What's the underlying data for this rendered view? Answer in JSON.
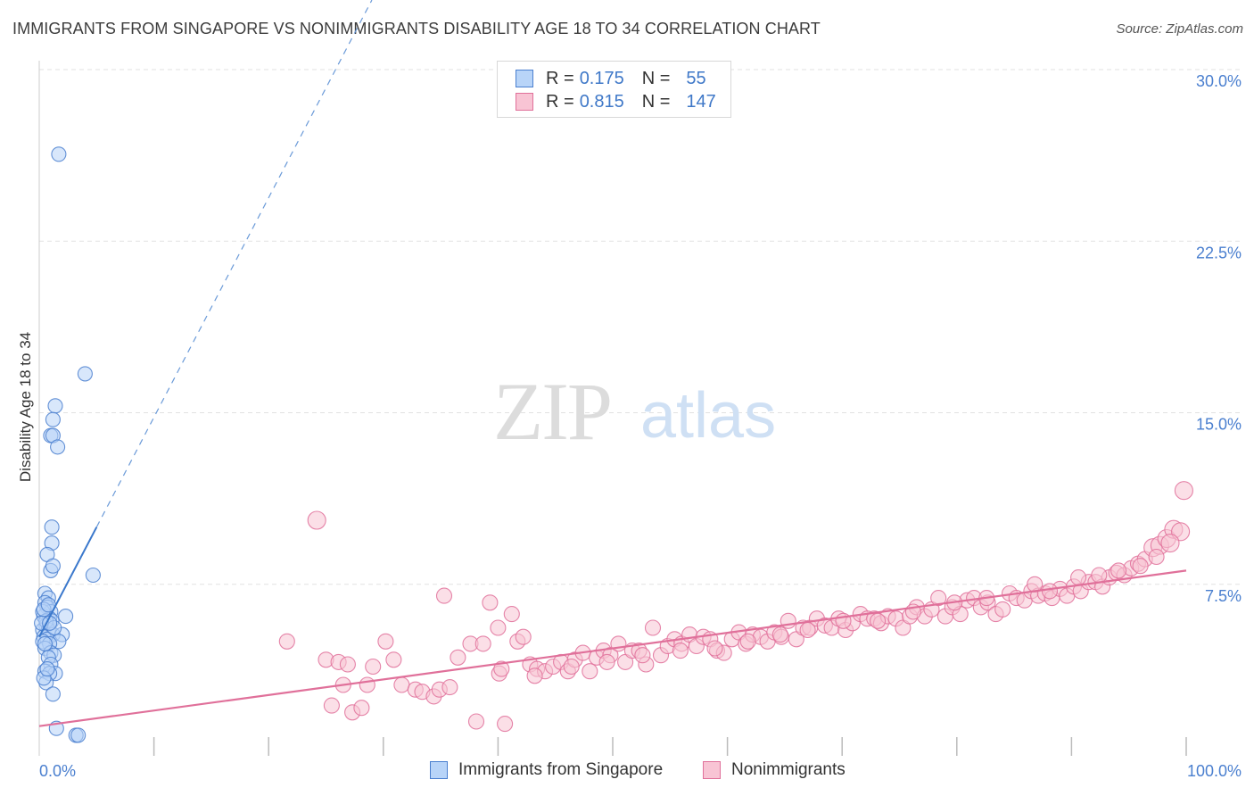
{
  "title": "IMMIGRANTS FROM SINGAPORE VS NONIMMIGRANTS DISABILITY AGE 18 TO 34 CORRELATION CHART",
  "source": "Source: ZipAtlas.com",
  "watermark": {
    "zip": "ZIP",
    "atlas": "atlas"
  },
  "legend": {
    "rows": [
      {
        "r_label": "R =",
        "r_value": "0.175",
        "n_label": "N =",
        "n_value": "55",
        "color": "#4a7fcf",
        "fill": "#b8d4f8"
      },
      {
        "r_label": "R =",
        "r_value": "0.815",
        "n_label": "N =",
        "n_value": "147",
        "color": "#e0709a",
        "fill": "#f8c4d4"
      }
    ]
  },
  "bottom_legend": [
    {
      "label": "Immigrants from Singapore",
      "color": "#4a7fcf",
      "fill": "#b8d4f8"
    },
    {
      "label": "Nonimmigrants",
      "color": "#e0709a",
      "fill": "#f8c4d4"
    }
  ],
  "chart_data": {
    "type": "scatter",
    "ylabel": "Disability Age 18 to 34",
    "xlim": [
      0,
      100
    ],
    "ylim": [
      0,
      30
    ],
    "x_tick_labels": [
      "0.0%",
      "100.0%"
    ],
    "y_ticks": [
      7.5,
      15.0,
      22.5,
      30.0
    ],
    "y_tick_labels": [
      "7.5%",
      "15.0%",
      "22.5%",
      "30.0%"
    ],
    "grid": true,
    "series": [
      {
        "name": "Immigrants from Singapore",
        "color": "#4a7fcf",
        "fill": "#b8d4f8",
        "trend": {
          "x0": 0,
          "y0": 5.2,
          "x1": 5,
          "y1": 10.0,
          "dashed_to_x": 29
        },
        "points": [
          [
            1.7,
            26.3
          ],
          [
            4,
            16.7
          ],
          [
            1.4,
            15.3
          ],
          [
            1.2,
            14.7
          ],
          [
            1.0,
            14.0
          ],
          [
            1.2,
            14.0
          ],
          [
            1.6,
            13.5
          ],
          [
            1.1,
            10.0
          ],
          [
            1.1,
            9.3
          ],
          [
            0.7,
            8.8
          ],
          [
            1.0,
            8.1
          ],
          [
            1.2,
            8.3
          ],
          [
            4.7,
            7.9
          ],
          [
            0.5,
            7.1
          ],
          [
            0.8,
            6.9
          ],
          [
            0.5,
            6.7
          ],
          [
            0.7,
            6.5
          ],
          [
            1.0,
            6.3
          ],
          [
            0.4,
            6.1
          ],
          [
            0.9,
            6.0
          ],
          [
            2.3,
            6.1
          ],
          [
            1.1,
            5.9
          ],
          [
            0.6,
            5.7
          ],
          [
            0.3,
            5.5
          ],
          [
            0.8,
            5.5
          ],
          [
            1.2,
            5.3
          ],
          [
            2.0,
            5.3
          ],
          [
            0.4,
            5.2
          ],
          [
            0.7,
            5.1
          ],
          [
            0.3,
            5.0
          ],
          [
            1.7,
            5.0
          ],
          [
            0.9,
            4.9
          ],
          [
            0.5,
            4.7
          ],
          [
            1.0,
            4.5
          ],
          [
            1.3,
            4.4
          ],
          [
            0.8,
            4.3
          ],
          [
            1.0,
            4.0
          ],
          [
            0.5,
            3.7
          ],
          [
            1.4,
            3.6
          ],
          [
            0.9,
            3.6
          ],
          [
            0.6,
            3.2
          ],
          [
            1.2,
            2.7
          ],
          [
            0.4,
            3.4
          ],
          [
            0.7,
            3.8
          ],
          [
            1.5,
            1.2
          ],
          [
            3.2,
            0.9
          ],
          [
            3.4,
            0.9
          ],
          [
            0.3,
            6.3
          ],
          [
            0.6,
            5.9
          ],
          [
            0.2,
            5.8
          ],
          [
            1.3,
            5.6
          ],
          [
            0.5,
            4.9
          ],
          [
            0.9,
            5.8
          ],
          [
            0.4,
            6.4
          ],
          [
            0.8,
            6.6
          ]
        ]
      },
      {
        "name": "Nonimmigrants",
        "color": "#e0709a",
        "fill": "#f8c4d4",
        "trend": {
          "x0": 0,
          "y0": 1.3,
          "x1": 100,
          "y1": 8.1
        },
        "points": [
          [
            24.2,
            10.3
          ],
          [
            21.6,
            5.0
          ],
          [
            25.0,
            4.2
          ],
          [
            26.1,
            4.1
          ],
          [
            26.5,
            3.1
          ],
          [
            25.5,
            2.2
          ],
          [
            26.9,
            4.0
          ],
          [
            27.3,
            1.9
          ],
          [
            28.1,
            2.1
          ],
          [
            28.6,
            3.1
          ],
          [
            29.1,
            3.9
          ],
          [
            30.2,
            5.0
          ],
          [
            30.9,
            4.2
          ],
          [
            31.6,
            3.1
          ],
          [
            32.8,
            2.9
          ],
          [
            33.4,
            2.8
          ],
          [
            34.4,
            2.6
          ],
          [
            34.9,
            2.9
          ],
          [
            35.8,
            3.0
          ],
          [
            35.3,
            7.0
          ],
          [
            36.5,
            4.3
          ],
          [
            37.6,
            4.9
          ],
          [
            38.1,
            1.5
          ],
          [
            38.7,
            4.9
          ],
          [
            39.3,
            6.7
          ],
          [
            40.0,
            5.6
          ],
          [
            40.1,
            3.6
          ],
          [
            40.6,
            1.4
          ],
          [
            41.2,
            6.2
          ],
          [
            41.7,
            5.0
          ],
          [
            42.2,
            5.2
          ],
          [
            42.8,
            4.0
          ],
          [
            43.4,
            3.8
          ],
          [
            44.1,
            3.7
          ],
          [
            44.8,
            3.9
          ],
          [
            45.5,
            4.1
          ],
          [
            46.1,
            3.7
          ],
          [
            46.7,
            4.2
          ],
          [
            47.4,
            4.5
          ],
          [
            48.0,
            3.7
          ],
          [
            48.6,
            4.3
          ],
          [
            49.2,
            4.6
          ],
          [
            49.8,
            4.4
          ],
          [
            50.5,
            4.9
          ],
          [
            51.1,
            4.1
          ],
          [
            51.7,
            4.6
          ],
          [
            52.3,
            4.6
          ],
          [
            52.9,
            4.0
          ],
          [
            53.5,
            5.6
          ],
          [
            54.2,
            4.4
          ],
          [
            54.8,
            4.8
          ],
          [
            55.4,
            5.1
          ],
          [
            56.0,
            4.9
          ],
          [
            56.7,
            5.3
          ],
          [
            57.3,
            4.8
          ],
          [
            57.9,
            5.2
          ],
          [
            58.5,
            5.1
          ],
          [
            59.1,
            4.6
          ],
          [
            59.7,
            4.5
          ],
          [
            60.4,
            5.1
          ],
          [
            61.0,
            5.4
          ],
          [
            61.6,
            4.9
          ],
          [
            62.2,
            5.3
          ],
          [
            62.9,
            5.2
          ],
          [
            63.5,
            5.0
          ],
          [
            64.1,
            5.4
          ],
          [
            64.7,
            5.2
          ],
          [
            65.3,
            5.9
          ],
          [
            66.0,
            5.1
          ],
          [
            66.6,
            5.6
          ],
          [
            67.2,
            5.6
          ],
          [
            67.8,
            6.0
          ],
          [
            68.5,
            5.7
          ],
          [
            69.1,
            5.6
          ],
          [
            69.7,
            6.0
          ],
          [
            70.3,
            5.5
          ],
          [
            70.9,
            5.8
          ],
          [
            71.6,
            6.2
          ],
          [
            72.2,
            6.0
          ],
          [
            72.8,
            6.0
          ],
          [
            73.4,
            5.8
          ],
          [
            74.0,
            6.1
          ],
          [
            74.7,
            6.0
          ],
          [
            75.3,
            5.6
          ],
          [
            75.9,
            6.1
          ],
          [
            76.5,
            6.5
          ],
          [
            77.2,
            6.1
          ],
          [
            77.8,
            6.4
          ],
          [
            78.4,
            6.9
          ],
          [
            79.0,
            6.1
          ],
          [
            79.6,
            6.5
          ],
          [
            80.3,
            6.2
          ],
          [
            80.9,
            6.8
          ],
          [
            81.5,
            6.9
          ],
          [
            82.1,
            6.5
          ],
          [
            82.7,
            6.7
          ],
          [
            83.4,
            6.2
          ],
          [
            84.0,
            6.4
          ],
          [
            84.6,
            7.1
          ],
          [
            85.2,
            6.9
          ],
          [
            85.9,
            6.8
          ],
          [
            86.5,
            7.2
          ],
          [
            87.1,
            7.0
          ],
          [
            87.7,
            7.1
          ],
          [
            88.3,
            6.9
          ],
          [
            89.0,
            7.3
          ],
          [
            89.6,
            7.0
          ],
          [
            90.2,
            7.4
          ],
          [
            90.8,
            7.2
          ],
          [
            91.5,
            7.6
          ],
          [
            92.1,
            7.6
          ],
          [
            92.7,
            7.4
          ],
          [
            93.3,
            7.8
          ],
          [
            93.9,
            8.0
          ],
          [
            94.6,
            7.9
          ],
          [
            95.2,
            8.2
          ],
          [
            95.8,
            8.4
          ],
          [
            96.4,
            8.6
          ],
          [
            97.1,
            9.1
          ],
          [
            97.7,
            9.2
          ],
          [
            98.3,
            9.5
          ],
          [
            98.9,
            9.9
          ],
          [
            99.5,
            9.8
          ],
          [
            99.8,
            11.6
          ],
          [
            86.8,
            7.5
          ],
          [
            88.1,
            7.2
          ],
          [
            90.6,
            7.8
          ],
          [
            92.4,
            7.9
          ],
          [
            94.1,
            8.1
          ],
          [
            96.0,
            8.3
          ],
          [
            97.4,
            8.7
          ],
          [
            98.6,
            9.3
          ],
          [
            82.6,
            6.9
          ],
          [
            79.8,
            6.7
          ],
          [
            76.2,
            6.3
          ],
          [
            73.1,
            5.9
          ],
          [
            70.1,
            5.9
          ],
          [
            67.0,
            5.5
          ],
          [
            64.6,
            5.3
          ],
          [
            61.8,
            5.0
          ],
          [
            58.9,
            4.7
          ],
          [
            55.9,
            4.6
          ],
          [
            52.6,
            4.4
          ],
          [
            49.5,
            4.1
          ],
          [
            46.4,
            3.9
          ],
          [
            43.2,
            3.5
          ],
          [
            40.3,
            3.8
          ]
        ]
      }
    ]
  }
}
